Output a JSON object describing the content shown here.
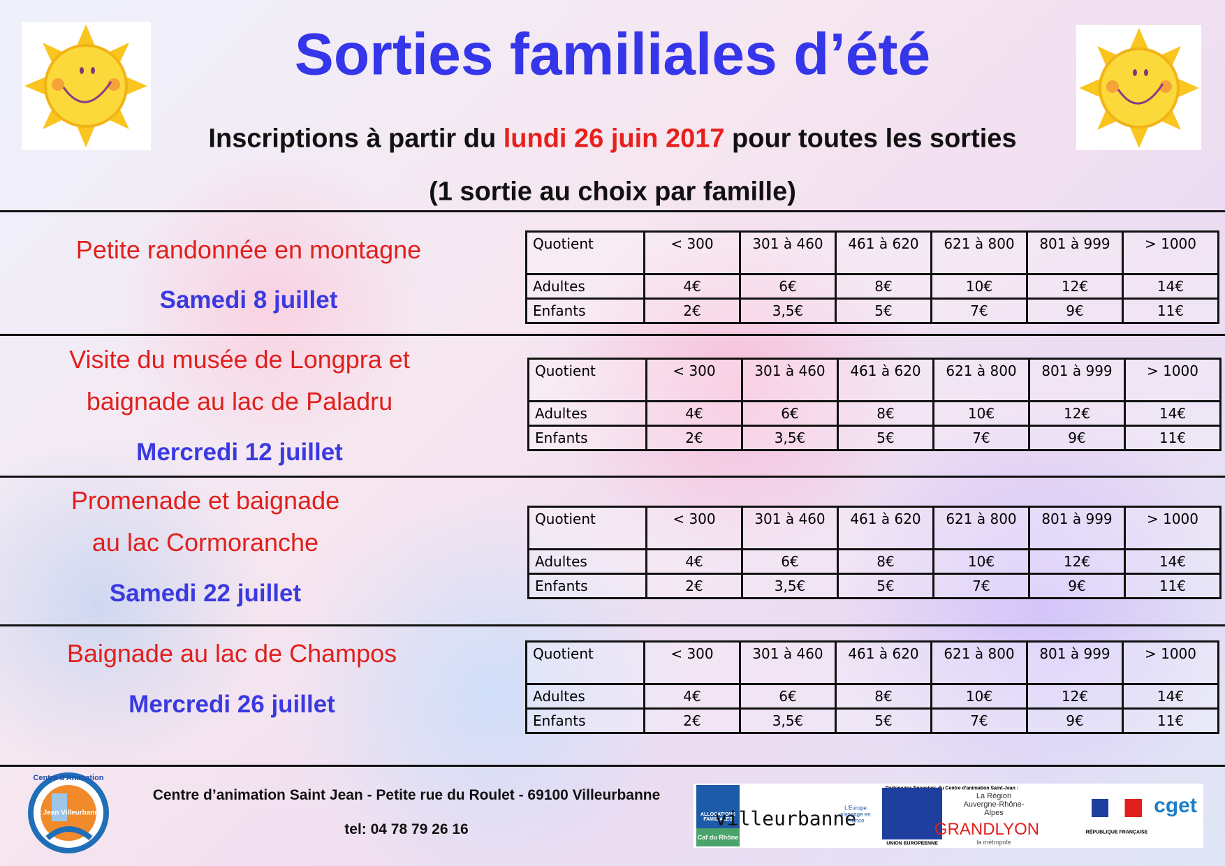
{
  "header": {
    "title": "Sorties familiales d’été",
    "subtitle": {
      "before": "Inscriptions à partir du ",
      "date": "lundi 26 juin 2017",
      "after": " pour toutes les sorties"
    },
    "note": "(1 sortie au choix par famille)"
  },
  "sections": [
    {
      "title": [
        "Petite randonnée en montagne"
      ],
      "date": "Samedi 8 juillet",
      "table": {
        "header": [
          "Quotient",
          "< 300",
          "301 à 460",
          "461 à 620",
          "621 à 800",
          "801 à 999",
          "> 1000"
        ],
        "rows": [
          [
            "Adultes",
            "4€",
            "6€",
            "8€",
            "10€",
            "12€",
            "14€"
          ],
          [
            "Enfants",
            "2€",
            "3,5€",
            "5€",
            "7€",
            "9€",
            "11€"
          ]
        ]
      }
    },
    {
      "title": [
        "Visite du musée de Longpra et",
        "baignade au lac de Paladru"
      ],
      "date": "Mercredi 12 juillet",
      "table": {
        "header": [
          "Quotient",
          "< 300",
          "301 à 460",
          "461 à 620",
          "621 à 800",
          "801 à 999",
          "> 1000"
        ],
        "rows": [
          [
            "Adultes",
            "4€",
            "6€",
            "8€",
            "10€",
            "12€",
            "14€"
          ],
          [
            "Enfants",
            "2€",
            "3,5€",
            "5€",
            "7€",
            "9€",
            "11€"
          ]
        ]
      }
    },
    {
      "title": [
        "Promenade et baignade",
        "au lac Cormoranche"
      ],
      "date": "Samedi 22 juillet",
      "table": {
        "header": [
          "Quotient",
          "< 300",
          "301 à 460",
          "461 à 620",
          "621 à 800",
          "801 à 999",
          "> 1000"
        ],
        "rows": [
          [
            "Adultes",
            "4€",
            "6€",
            "8€",
            "10€",
            "12€",
            "14€"
          ],
          [
            "Enfants",
            "2€",
            "3,5€",
            "5€",
            "7€",
            "9€",
            "11€"
          ]
        ]
      }
    },
    {
      "title": [
        "Baignade au lac de Champos"
      ],
      "date": "Mercredi 26 juillet",
      "table": {
        "header": [
          "Quotient",
          "< 300",
          "301 à 460",
          "461 à 620",
          "621 à 800",
          "801 à 999",
          "> 1000"
        ],
        "rows": [
          [
            "Adultes",
            "4€",
            "6€",
            "8€",
            "10€",
            "12€",
            "14€"
          ],
          [
            "Enfants",
            "2€",
            "3,5€",
            "5€",
            "7€",
            "9€",
            "11€"
          ]
        ]
      }
    }
  ],
  "footer": {
    "logo": {
      "name": "Centre d'Animation",
      "place": "St Jean Villeurbanne"
    },
    "address": "Centre d’animation Saint Jean - Petite rue du Roulet - 69100 Villeurbanne",
    "tel": "tel: 04 78 79 26 16",
    "partners": {
      "heading": "Partenaires financiers du Centre d'animation Saint-Jean :",
      "caf": [
        "ALLOCATIONS FAMILIALES",
        "Caf du Rhône"
      ],
      "villeurbanne": "villeurbanne",
      "europe": "L'Europe s'engage en France",
      "eu": "UNION EUROPEENNE",
      "region": "La Région Auvergne-Rhône-Alpes",
      "grandlyon": [
        "GRANDLYON",
        "la métropole"
      ],
      "republique": "RÉPUBLIQUE FRANÇAISE",
      "cget": "cget"
    }
  }
}
